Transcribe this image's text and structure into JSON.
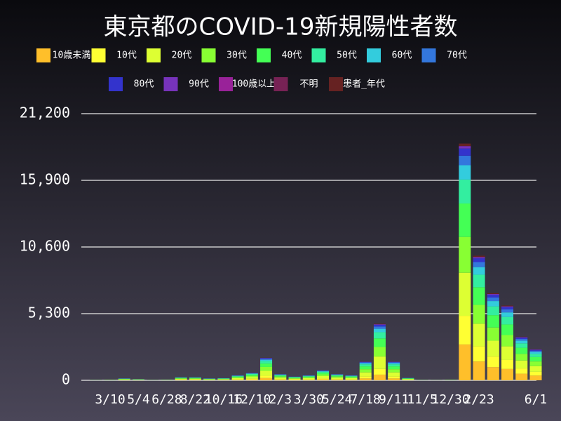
{
  "chart_data": {
    "type": "stacked-bar",
    "title": "東京都のCOVID-19新規陽性者数",
    "categories": [
      null,
      "3/10",
      null,
      "5/4",
      null,
      "6/28",
      null,
      "8/22",
      null,
      "10/16",
      null,
      "12/10",
      null,
      "2/3",
      null,
      "3/30",
      null,
      "5/24",
      null,
      "7/18",
      null,
      "9/11",
      null,
      "11/5",
      null,
      "12/30",
      null,
      "2/23",
      null,
      null,
      null,
      "6/1"
    ],
    "ylim": [
      0,
      21200
    ],
    "yticks": [
      0,
      {
        "value": 5300,
        "label": "5,300"
      },
      {
        "value": 10600,
        "label": "10,600"
      },
      {
        "value": 15900,
        "label": "15,900"
      },
      {
        "value": 21200,
        "label": "21,200"
      }
    ],
    "grid": true,
    "series": [
      {
        "name": "10歳未満",
        "color": "#ffbf2a",
        "values": [
          3,
          5,
          15,
          10,
          3,
          6,
          25,
          25,
          15,
          18,
          40,
          60,
          180,
          50,
          30,
          40,
          80,
          50,
          40,
          150,
          450,
          150,
          20,
          3,
          2,
          5,
          2850,
          1500,
          1050,
          900,
          525,
          375
        ]
      },
      {
        "name": "10代",
        "color": "#ffff33",
        "values": [
          3,
          5,
          15,
          10,
          3,
          6,
          25,
          25,
          15,
          18,
          40,
          60,
          180,
          50,
          30,
          40,
          80,
          50,
          40,
          150,
          450,
          150,
          20,
          3,
          2,
          5,
          2280,
          1200,
          840,
          720,
          420,
          300
        ]
      },
      {
        "name": "20代",
        "color": "#ddff33",
        "values": [
          7,
          11,
          33,
          22,
          7,
          13,
          55,
          55,
          33,
          40,
          88,
          132,
          396,
          110,
          66,
          88,
          176,
          110,
          88,
          330,
          990,
          330,
          44,
          7,
          4,
          11,
          3420,
          1800,
          1260,
          1080,
          630,
          450
        ]
      },
      {
        "name": "30代",
        "color": "#88ff33",
        "values": [
          5,
          9,
          26,
          17,
          5,
          10,
          43,
          43,
          26,
          31,
          68,
          102,
          306,
          85,
          51,
          68,
          136,
          85,
          68,
          255,
          765,
          255,
          34,
          5,
          3,
          9,
          2850,
          1500,
          1050,
          900,
          525,
          375
        ]
      },
      {
        "name": "40代",
        "color": "#44ff55",
        "values": [
          5,
          8,
          23,
          15,
          5,
          9,
          38,
          38,
          23,
          27,
          60,
          90,
          270,
          75,
          45,
          60,
          120,
          75,
          60,
          225,
          675,
          225,
          30,
          5,
          3,
          8,
          2660,
          1400,
          980,
          840,
          490,
          350
        ]
      },
      {
        "name": "50代",
        "color": "#33eea0",
        "values": [
          3,
          6,
          17,
          11,
          3,
          7,
          28,
          28,
          17,
          20,
          44,
          66,
          198,
          55,
          33,
          44,
          88,
          55,
          44,
          165,
          495,
          165,
          22,
          3,
          2,
          6,
          1900,
          1000,
          700,
          600,
          350,
          250
        ]
      },
      {
        "name": "60代",
        "color": "#33ccdd",
        "values": [
          2,
          3,
          9,
          6,
          2,
          4,
          15,
          15,
          9,
          11,
          24,
          36,
          108,
          30,
          18,
          24,
          48,
          30,
          24,
          90,
          270,
          90,
          12,
          2,
          1,
          3,
          1140,
          600,
          420,
          360,
          210,
          150
        ]
      },
      {
        "name": "70代",
        "color": "#3377dd",
        "values": [
          1,
          2,
          6,
          4,
          1,
          2,
          10,
          10,
          6,
          7,
          16,
          24,
          72,
          20,
          12,
          16,
          32,
          20,
          16,
          60,
          180,
          60,
          8,
          1,
          1,
          2,
          760,
          400,
          280,
          240,
          140,
          100
        ]
      },
      {
        "name": "80代",
        "color": "#3333cc",
        "values": [
          1,
          2,
          5,
          3,
          1,
          2,
          8,
          8,
          5,
          5,
          12,
          18,
          54,
          15,
          9,
          12,
          24,
          15,
          12,
          45,
          135,
          45,
          6,
          1,
          1,
          2,
          570,
          300,
          210,
          180,
          105,
          75
        ]
      },
      {
        "name": "90代",
        "color": "#7733bb",
        "values": [
          0,
          1,
          2,
          1,
          0,
          1,
          3,
          3,
          2,
          2,
          4,
          6,
          18,
          5,
          3,
          4,
          8,
          5,
          4,
          15,
          45,
          15,
          2,
          0,
          0,
          1,
          190,
          100,
          70,
          60,
          35,
          25
        ]
      },
      {
        "name": "100歳以上",
        "color": "#992299",
        "values": [
          0,
          0,
          0,
          0,
          0,
          0,
          0,
          0,
          0,
          0,
          0,
          0,
          1,
          0,
          0,
          0,
          0,
          0,
          0,
          0,
          1,
          0,
          0,
          0,
          0,
          0,
          4,
          2,
          1,
          1,
          1,
          0
        ]
      },
      {
        "name": "不明",
        "color": "#772255",
        "values": [
          0,
          0,
          0,
          0,
          0,
          0,
          0,
          0,
          0,
          0,
          0,
          0,
          0,
          0,
          0,
          0,
          0,
          0,
          0,
          0,
          0,
          0,
          0,
          0,
          0,
          0,
          10,
          5,
          3,
          2,
          1,
          1
        ]
      },
      {
        "name": "患者_年代",
        "color": "#662222",
        "values": [
          0,
          0,
          1,
          1,
          0,
          0,
          2,
          2,
          1,
          1,
          3,
          5,
          14,
          4,
          2,
          3,
          6,
          4,
          3,
          12,
          36,
          12,
          2,
          0,
          0,
          0,
          190,
          100,
          70,
          60,
          35,
          25
        ]
      }
    ]
  }
}
